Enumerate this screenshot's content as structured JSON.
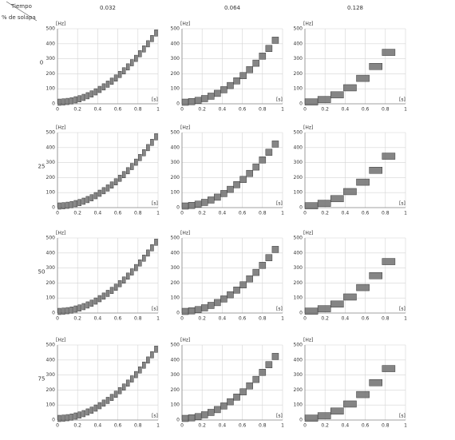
{
  "header": {
    "corner_top": "Tiempo",
    "corner_left": "% de solapa",
    "columns": [
      0.032,
      0.064,
      0.128
    ],
    "rows": [
      0,
      25,
      50,
      75
    ]
  },
  "chart_data": [
    {
      "type": "spectrogram",
      "y_label": "[Hz]",
      "x_label": "[s]",
      "x": [
        0.02,
        0.06,
        0.1,
        0.14,
        0.18,
        0.22,
        0.26,
        0.3,
        0.34,
        0.38,
        0.42,
        0.46,
        0.5,
        0.54,
        0.58,
        0.62,
        0.66,
        0.7,
        0.74,
        0.78,
        0.82,
        0.86,
        0.9,
        0.94,
        0.98
      ],
      "values": [
        0,
        2,
        5,
        9,
        16,
        23,
        32,
        43,
        55,
        69,
        85,
        102,
        120,
        140,
        161,
        185,
        209,
        235,
        263,
        292,
        323,
        355,
        389,
        424,
        461
      ],
      "xlim": [
        0,
        1
      ],
      "ylim": [
        0,
        500
      ],
      "xticks": [
        0,
        0.2,
        0.4,
        0.6,
        0.8,
        1
      ],
      "yticks": [
        0,
        100,
        200,
        300,
        400,
        500
      ],
      "grid": true,
      "color": "#707070"
    },
    {
      "type": "spectrogram",
      "y_label": "[Hz]",
      "x_label": "[s]",
      "x": [
        0.032,
        0.096,
        0.16,
        0.224,
        0.288,
        0.352,
        0.416,
        0.48,
        0.544,
        0.608,
        0.672,
        0.736,
        0.8,
        0.864,
        0.928
      ],
      "values": [
        0,
        4,
        12,
        24,
        40,
        59,
        83,
        111,
        142,
        177,
        217,
        260,
        307,
        358,
        413
      ],
      "xlim": [
        0,
        1
      ],
      "ylim": [
        0,
        500
      ],
      "xticks": [
        0,
        0.2,
        0.4,
        0.6,
        0.8,
        1
      ],
      "yticks": [
        0,
        100,
        200,
        300,
        400,
        500
      ],
      "grid": true,
      "color": "#707070"
    },
    {
      "type": "spectrogram",
      "y_label": "[Hz]",
      "x_label": "[s]",
      "x": [
        0.064,
        0.192,
        0.32,
        0.448,
        0.576,
        0.704,
        0.832
      ],
      "values": [
        2,
        18,
        49,
        96,
        159,
        238,
        332
      ],
      "xlim": [
        0,
        1
      ],
      "ylim": [
        0,
        500
      ],
      "xticks": [
        0,
        0.2,
        0.4,
        0.6,
        0.8,
        1
      ],
      "yticks": [
        0,
        100,
        200,
        300,
        400,
        500
      ],
      "grid": true,
      "color": "#707070"
    },
    {
      "type": "spectrogram",
      "y_label": "[Hz]",
      "x_label": "[s]",
      "x": [
        0.02,
        0.06,
        0.1,
        0.14,
        0.18,
        0.22,
        0.26,
        0.3,
        0.34,
        0.38,
        0.42,
        0.46,
        0.5,
        0.54,
        0.58,
        0.62,
        0.66,
        0.7,
        0.74,
        0.78,
        0.82,
        0.86,
        0.9,
        0.94,
        0.98
      ],
      "values": [
        0,
        2,
        5,
        9,
        16,
        23,
        32,
        43,
        55,
        69,
        85,
        102,
        120,
        140,
        161,
        185,
        209,
        235,
        263,
        292,
        323,
        355,
        389,
        424,
        461
      ],
      "xlim": [
        0,
        1
      ],
      "ylim": [
        0,
        500
      ],
      "xticks": [
        0,
        0.2,
        0.4,
        0.6,
        0.8,
        1
      ],
      "yticks": [
        0,
        100,
        200,
        300,
        400,
        500
      ],
      "grid": true,
      "color": "#707070"
    },
    {
      "type": "spectrogram",
      "y_label": "[Hz]",
      "x_label": "[s]",
      "x": [
        0.032,
        0.096,
        0.16,
        0.224,
        0.288,
        0.352,
        0.416,
        0.48,
        0.544,
        0.608,
        0.672,
        0.736,
        0.8,
        0.864,
        0.928
      ],
      "values": [
        0,
        4,
        12,
        24,
        40,
        59,
        83,
        111,
        142,
        177,
        217,
        260,
        307,
        358,
        413
      ],
      "xlim": [
        0,
        1
      ],
      "ylim": [
        0,
        500
      ],
      "xticks": [
        0,
        0.2,
        0.4,
        0.6,
        0.8,
        1
      ],
      "yticks": [
        0,
        100,
        200,
        300,
        400,
        500
      ],
      "grid": true,
      "color": "#707070"
    },
    {
      "type": "spectrogram",
      "y_label": "[Hz]",
      "x_label": "[s]",
      "x": [
        0.064,
        0.192,
        0.32,
        0.448,
        0.576,
        0.704,
        0.832
      ],
      "values": [
        2,
        18,
        49,
        96,
        159,
        238,
        332
      ],
      "xlim": [
        0,
        1
      ],
      "ylim": [
        0,
        500
      ],
      "xticks": [
        0,
        0.2,
        0.4,
        0.6,
        0.8,
        1
      ],
      "yticks": [
        0,
        100,
        200,
        300,
        400,
        500
      ],
      "grid": true,
      "color": "#707070"
    },
    {
      "type": "spectrogram",
      "y_label": "[Hz]",
      "x_label": "[s]",
      "x": [
        0.02,
        0.06,
        0.1,
        0.14,
        0.18,
        0.22,
        0.26,
        0.3,
        0.34,
        0.38,
        0.42,
        0.46,
        0.5,
        0.54,
        0.58,
        0.62,
        0.66,
        0.7,
        0.74,
        0.78,
        0.82,
        0.86,
        0.9,
        0.94,
        0.98
      ],
      "values": [
        0,
        2,
        5,
        9,
        16,
        23,
        32,
        43,
        55,
        69,
        85,
        102,
        120,
        140,
        161,
        185,
        209,
        235,
        263,
        292,
        323,
        355,
        389,
        424,
        461
      ],
      "xlim": [
        0,
        1
      ],
      "ylim": [
        0,
        500
      ],
      "xticks": [
        0,
        0.2,
        0.4,
        0.6,
        0.8,
        1
      ],
      "yticks": [
        0,
        100,
        200,
        300,
        400,
        500
      ],
      "grid": true,
      "color": "#707070"
    },
    {
      "type": "spectrogram",
      "y_label": "[Hz]",
      "x_label": "[s]",
      "x": [
        0.032,
        0.096,
        0.16,
        0.224,
        0.288,
        0.352,
        0.416,
        0.48,
        0.544,
        0.608,
        0.672,
        0.736,
        0.8,
        0.864,
        0.928
      ],
      "values": [
        0,
        4,
        12,
        24,
        40,
        59,
        83,
        111,
        142,
        177,
        217,
        260,
        307,
        358,
        413
      ],
      "xlim": [
        0,
        1
      ],
      "ylim": [
        0,
        500
      ],
      "xticks": [
        0,
        0.2,
        0.4,
        0.6,
        0.8,
        1
      ],
      "yticks": [
        0,
        100,
        200,
        300,
        400,
        500
      ],
      "grid": true,
      "color": "#707070"
    },
    {
      "type": "spectrogram",
      "y_label": "[Hz]",
      "x_label": "[s]",
      "x": [
        0.064,
        0.192,
        0.32,
        0.448,
        0.576,
        0.704,
        0.832
      ],
      "values": [
        2,
        18,
        49,
        96,
        159,
        238,
        332
      ],
      "xlim": [
        0,
        1
      ],
      "ylim": [
        0,
        500
      ],
      "xticks": [
        0,
        0.2,
        0.4,
        0.6,
        0.8,
        1
      ],
      "yticks": [
        0,
        100,
        200,
        300,
        400,
        500
      ],
      "grid": true,
      "color": "#707070"
    },
    {
      "type": "spectrogram",
      "y_label": "[Hz]",
      "x_label": "[s]",
      "x": [
        0.02,
        0.06,
        0.1,
        0.14,
        0.18,
        0.22,
        0.26,
        0.3,
        0.34,
        0.38,
        0.42,
        0.46,
        0.5,
        0.54,
        0.58,
        0.62,
        0.66,
        0.7,
        0.74,
        0.78,
        0.82,
        0.86,
        0.9,
        0.94,
        0.98
      ],
      "values": [
        0,
        2,
        5,
        9,
        16,
        23,
        32,
        43,
        55,
        69,
        85,
        102,
        120,
        140,
        161,
        185,
        209,
        235,
        263,
        292,
        323,
        355,
        389,
        424,
        461
      ],
      "xlim": [
        0,
        1
      ],
      "ylim": [
        0,
        500
      ],
      "xticks": [
        0,
        0.2,
        0.4,
        0.6,
        0.8,
        1
      ],
      "yticks": [
        0,
        100,
        200,
        300,
        400,
        500
      ],
      "grid": true,
      "color": "#707070"
    },
    {
      "type": "spectrogram",
      "y_label": "[Hz]",
      "x_label": "[s]",
      "x": [
        0.032,
        0.096,
        0.16,
        0.224,
        0.288,
        0.352,
        0.416,
        0.48,
        0.544,
        0.608,
        0.672,
        0.736,
        0.8,
        0.864,
        0.928
      ],
      "values": [
        0,
        4,
        12,
        24,
        40,
        59,
        83,
        111,
        142,
        177,
        217,
        260,
        307,
        358,
        413
      ],
      "xlim": [
        0,
        1
      ],
      "ylim": [
        0,
        500
      ],
      "xticks": [
        0,
        0.2,
        0.4,
        0.6,
        0.8,
        1
      ],
      "yticks": [
        0,
        100,
        200,
        300,
        400,
        500
      ],
      "grid": true,
      "color": "#707070"
    },
    {
      "type": "spectrogram",
      "y_label": "[Hz]",
      "x_label": "[s]",
      "x": [
        0.064,
        0.192,
        0.32,
        0.448,
        0.576,
        0.704,
        0.832
      ],
      "values": [
        2,
        18,
        49,
        96,
        159,
        238,
        332
      ],
      "xlim": [
        0,
        1
      ],
      "ylim": [
        0,
        500
      ],
      "xticks": [
        0,
        0.2,
        0.4,
        0.6,
        0.8,
        1
      ],
      "yticks": [
        0,
        100,
        200,
        300,
        400,
        500
      ],
      "grid": true,
      "color": "#707070"
    }
  ]
}
